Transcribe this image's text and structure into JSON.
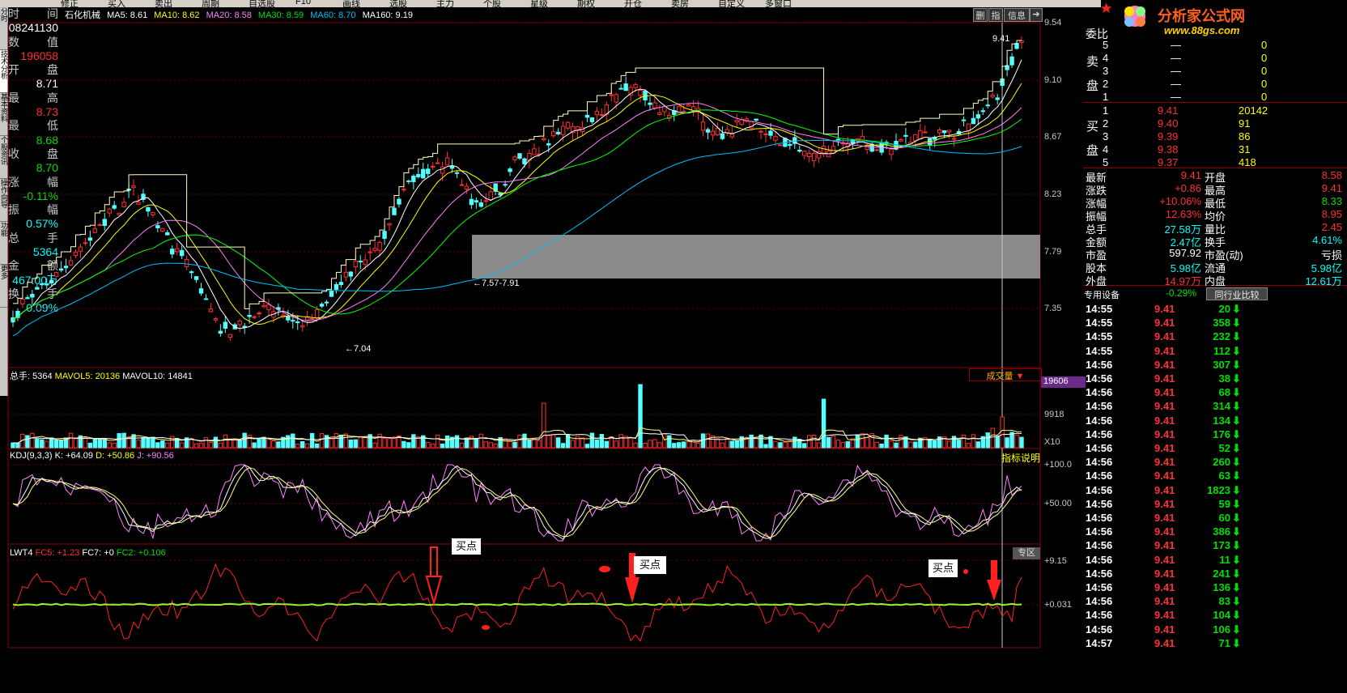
{
  "top_menu": [
    "修正",
    "买入",
    "卖出",
    "周期",
    "自选股",
    "F10",
    "画线",
    "选股",
    "主力",
    "个股",
    "星级",
    "期权",
    "开仓",
    "卖房",
    "自定义",
    "多窗口"
  ],
  "left_tabs": [
    "分时",
    "技术分析",
    "基本资料",
    "个股资讯",
    "操作向导",
    "功能",
    "更多"
  ],
  "left_info": {
    "time_label": "时      间",
    "time_value": "08241130",
    "count_label": "数      值",
    "count_value": "196058",
    "open_label": "开      盘",
    "open_value": "8.71",
    "high_label": "最      高",
    "high_value": "8.73",
    "low_label": "最      低",
    "low_value": "8.68",
    "close_label": "收      盘",
    "close_value": "8.70",
    "chg_label": "涨      幅",
    "chg_value": "-0.11%",
    "amp_label": "振      幅",
    "amp_value": "0.57%",
    "vol_label": "总      手",
    "vol_value": "5364",
    "amt_label": "金      额",
    "amt_value": "467.00万",
    "turn_label": "换      手",
    "turn_value": "0.09%"
  },
  "chart_header": {
    "stock": "石化机械",
    "ma5": "MA5: 8.61",
    "ma10": "MA10: 8.62",
    "ma20": "MA20: 8.58",
    "ma30": "MA30: 8.59",
    "ma60": "MA60: 8.70",
    "ma160": "MA160: 9.19",
    "btn_delete": "删",
    "btn_index": "指",
    "btn_info": "信息",
    "ma_colors": {
      "ma5": "#ffffff",
      "ma10": "#ffff00",
      "ma20": "#ff80ff",
      "ma30": "#00ff00",
      "ma60": "#00c0ff",
      "ma160": "#ffffff"
    }
  },
  "price_axis": [
    "9.54",
    "9.10",
    "8.67",
    "8.23",
    "7.79",
    "7.35"
  ],
  "annotations": {
    "high": "9.41",
    "low": "←7.04",
    "gap": "←7.57-7.91"
  },
  "volume_header": {
    "total": "总手: 5364",
    "mavol5": "MAVOL5: 20136",
    "mavol10": "MAVOL10: 14841",
    "selector": "成交量"
  },
  "volume_axis": {
    "top": "19606",
    "mid": "9918",
    "unit": "X10"
  },
  "kdj_header": {
    "name": "KDJ(9,3,3)",
    "k": "K: +64.09",
    "d": "D: +50.86",
    "j": "J: +90.56",
    "explain": "指标说明"
  },
  "kdj_axis": [
    "+100.0",
    "+50.00"
  ],
  "lwt_header": {
    "name": "LWT4",
    "fc5": "FC5: +1.23",
    "fc7": "FC7: +0",
    "fc2": "FC2: +0.106",
    "zone": "专区"
  },
  "lwt_axis": [
    "+9.15",
    "+0.031"
  ],
  "buy_points": [
    "买点",
    "买点",
    "买点"
  ],
  "logo": {
    "title": "分析家公式网",
    "url": "www.88gs.com"
  },
  "order_book": {
    "ratio_label": "委比",
    "sell_label": "卖盘",
    "buy_label": "买盘",
    "sell": [
      {
        "lvl": "5",
        "price": "—",
        "vol": "0"
      },
      {
        "lvl": "4",
        "price": "—",
        "vol": "0"
      },
      {
        "lvl": "3",
        "price": "—",
        "vol": "0"
      },
      {
        "lvl": "2",
        "price": "—",
        "vol": "0"
      },
      {
        "lvl": "1",
        "price": "—",
        "vol": "0"
      }
    ],
    "buy": [
      {
        "lvl": "1",
        "price": "9.41",
        "vol": "20142"
      },
      {
        "lvl": "2",
        "price": "9.40",
        "vol": "91"
      },
      {
        "lvl": "3",
        "price": "9.39",
        "vol": "86"
      },
      {
        "lvl": "4",
        "price": "9.38",
        "vol": "31"
      },
      {
        "lvl": "5",
        "price": "9.37",
        "vol": "418"
      }
    ]
  },
  "quote": [
    {
      "l1": "最新",
      "v1": "9.41",
      "l2": "开盘",
      "v2": "8.58"
    },
    {
      "l1": "涨跌",
      "v1": "+0.86",
      "l2": "最高",
      "v2": "9.41"
    },
    {
      "l1": "涨幅",
      "v1": "+10.06%",
      "l2": "最低",
      "v2": "8.33"
    },
    {
      "l1": "振幅",
      "v1": "12.63%",
      "l2": "均价",
      "v2": "8.95"
    },
    {
      "l1": "总手",
      "v1": "27.58万",
      "l2": "量比",
      "v2": "2.45"
    },
    {
      "l1": "金额",
      "v1": "2.47亿",
      "l2": "换手",
      "v2": "4.61%"
    },
    {
      "l1": "市盈",
      "v1": "597.92",
      "l2": "市盈(动)",
      "v2": "亏损"
    },
    {
      "l1": "股本",
      "v1": "5.98亿",
      "l2": "流通",
      "v2": "5.98亿"
    },
    {
      "l1": "外盘",
      "v1": "14.97万",
      "l2": "内盘",
      "v2": "12.61万"
    }
  ],
  "industry": {
    "label": "专用设备",
    "chg": "-0.29%",
    "compare": "同行业比较"
  },
  "ticks": [
    {
      "t": "14:55",
      "p": "9.41",
      "v": "20"
    },
    {
      "t": "14:55",
      "p": "9.41",
      "v": "358"
    },
    {
      "t": "14:55",
      "p": "9.41",
      "v": "232"
    },
    {
      "t": "14:55",
      "p": "9.41",
      "v": "112"
    },
    {
      "t": "14:56",
      "p": "9.41",
      "v": "307"
    },
    {
      "t": "14:56",
      "p": "9.41",
      "v": "38"
    },
    {
      "t": "14:56",
      "p": "9.41",
      "v": "68"
    },
    {
      "t": "14:56",
      "p": "9.41",
      "v": "314"
    },
    {
      "t": "14:56",
      "p": "9.41",
      "v": "134"
    },
    {
      "t": "14:56",
      "p": "9.41",
      "v": "176"
    },
    {
      "t": "14:56",
      "p": "9.41",
      "v": "52"
    },
    {
      "t": "14:56",
      "p": "9.41",
      "v": "260"
    },
    {
      "t": "14:56",
      "p": "9.41",
      "v": "63"
    },
    {
      "t": "14:56",
      "p": "9.41",
      "v": "1823"
    },
    {
      "t": "14:56",
      "p": "9.41",
      "v": "59"
    },
    {
      "t": "14:56",
      "p": "9.41",
      "v": "60"
    },
    {
      "t": "14:56",
      "p": "9.41",
      "v": "386"
    },
    {
      "t": "14:56",
      "p": "9.41",
      "v": "173"
    },
    {
      "t": "14:56",
      "p": "9.41",
      "v": "11"
    },
    {
      "t": "14:56",
      "p": "9.41",
      "v": "241"
    },
    {
      "t": "14:56",
      "p": "9.41",
      "v": "136"
    },
    {
      "t": "14:56",
      "p": "9.41",
      "v": "83"
    },
    {
      "t": "14:56",
      "p": "9.41",
      "v": "104"
    },
    {
      "t": "14:56",
      "p": "9.41",
      "v": "106"
    },
    {
      "t": "14:57",
      "p": "9.41",
      "v": "71"
    }
  ]
}
